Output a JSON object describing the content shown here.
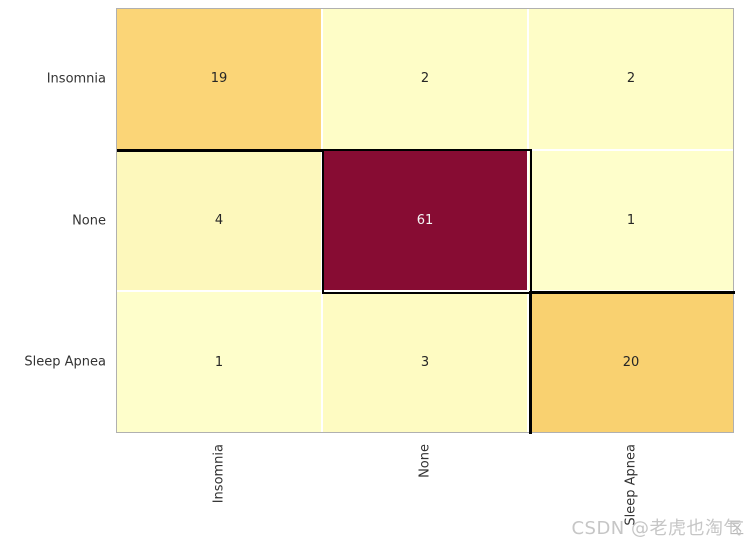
{
  "chart_data": {
    "type": "heatmap",
    "title": "",
    "xlabel": "",
    "ylabel": "",
    "x_categories": [
      "Insomnia",
      "None",
      "Sleep Apnea"
    ],
    "y_categories": [
      "Insomnia",
      "None",
      "Sleep Apnea"
    ],
    "matrix": [
      [
        19,
        2,
        2
      ],
      [
        4,
        61,
        1
      ],
      [
        1,
        3,
        20
      ]
    ],
    "value_range": [
      1,
      61
    ],
    "colormap": "YlOrRd",
    "legend": "none",
    "grid": "white cell separators, black outline on diagonal cells",
    "cells": [
      {
        "row": 0,
        "col": 0,
        "value": "19",
        "bg": "#FBD577",
        "fg": "#262626"
      },
      {
        "row": 0,
        "col": 1,
        "value": "2",
        "bg": "#FEFDC7",
        "fg": "#262626"
      },
      {
        "row": 0,
        "col": 2,
        "value": "2",
        "bg": "#FEFDC7",
        "fg": "#262626"
      },
      {
        "row": 1,
        "col": 0,
        "value": "4",
        "bg": "#FDF8BC",
        "fg": "#262626"
      },
      {
        "row": 1,
        "col": 1,
        "value": "61",
        "bg": "#870C33",
        "fg": "#F5F5F5"
      },
      {
        "row": 1,
        "col": 2,
        "value": "1",
        "bg": "#FEFECB",
        "fg": "#262626"
      },
      {
        "row": 2,
        "col": 0,
        "value": "1",
        "bg": "#FEFECB",
        "fg": "#262626"
      },
      {
        "row": 2,
        "col": 1,
        "value": "3",
        "bg": "#FEFBC2",
        "fg": "#262626"
      },
      {
        "row": 2,
        "col": 2,
        "value": "20",
        "bg": "#F9D170",
        "fg": "#262626"
      }
    ],
    "colors": {
      "background": "#ffffff",
      "outer_border": "#b0b0b0",
      "diagonal_outline": "#000000",
      "tick_label": "#333333",
      "max_cell": "#870C33",
      "min_cell": "#FEFECB"
    }
  },
  "watermark": {
    "text": "CSDN @老虎也淘气",
    "overlay_suffix": "区"
  }
}
